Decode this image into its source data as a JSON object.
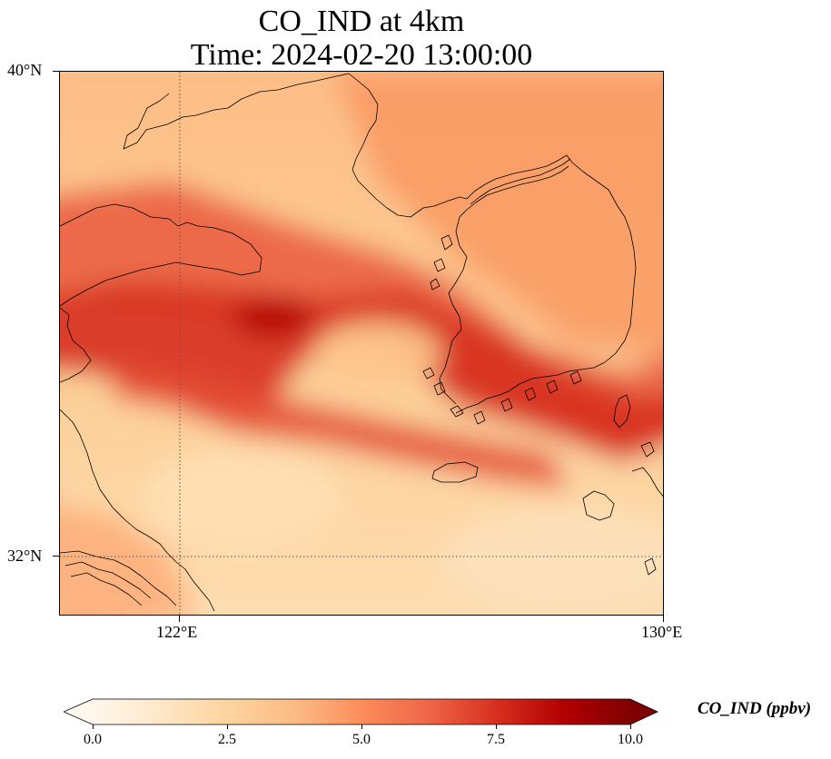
{
  "title": {
    "line1": "CO_IND at 4km",
    "line2": "Time: 2024-02-20 13:00:00"
  },
  "map": {
    "lon_range": [
      120.4,
      130.0
    ],
    "lat_range": [
      31.0,
      40.0
    ],
    "projection": "PlateCarree",
    "gridlines": {
      "lon": [
        122,
        130
      ],
      "lat": [
        32,
        40
      ],
      "style": "dotted"
    },
    "xticks": [
      "122°E",
      "130°E"
    ],
    "yticks": [
      "40°N",
      "32°N"
    ],
    "coastlines": true,
    "field_description_colors": [
      "#fff5eb",
      "#fdd49e",
      "#fc8d59",
      "#d7301f",
      "#7f0000"
    ]
  },
  "colorbar": {
    "label": "CO_IND (ppbv)",
    "ticks": [
      "0.0",
      "2.5",
      "5.0",
      "7.5",
      "10.0"
    ],
    "range": [
      0,
      10
    ],
    "extend": "both",
    "colormap": "OrRd",
    "stops": [
      "#fff7ec",
      "#fee8c8",
      "#fdd49e",
      "#fdbb84",
      "#fc8d59",
      "#ef6548",
      "#d7301f",
      "#b30000",
      "#7f0000"
    ]
  }
}
